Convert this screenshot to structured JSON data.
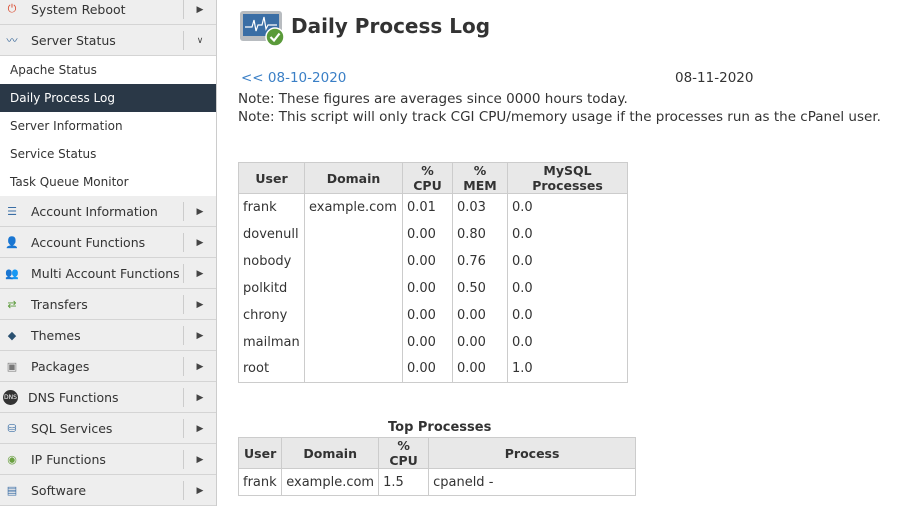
{
  "sidebar": {
    "top": [
      {
        "label": "System Reboot",
        "icon": "power-icon",
        "expanded": false
      },
      {
        "label": "Server Status",
        "icon": "monitor-icon",
        "expanded": true
      }
    ],
    "sub": [
      {
        "label": "Apache Status"
      },
      {
        "label": "Daily Process Log",
        "active": true
      },
      {
        "label": "Server Information"
      },
      {
        "label": "Service Status"
      },
      {
        "label": "Task Queue Monitor"
      }
    ],
    "cats": [
      {
        "label": "Account Information",
        "icon": "list-icon"
      },
      {
        "label": "Account Functions",
        "icon": "user-icon"
      },
      {
        "label": "Multi Account Functions",
        "icon": "users-icon"
      },
      {
        "label": "Transfers",
        "icon": "transfer-icon"
      },
      {
        "label": "Themes",
        "icon": "theme-icon"
      },
      {
        "label": "Packages",
        "icon": "package-icon"
      },
      {
        "label": "DNS Functions",
        "icon": "dns-icon"
      },
      {
        "label": "SQL Services",
        "icon": "database-icon"
      },
      {
        "label": "IP Functions",
        "icon": "globe-icon"
      },
      {
        "label": "Software",
        "icon": "software-icon"
      }
    ]
  },
  "page": {
    "title": "Daily Process Log",
    "prev_link": "<< 08-10-2020",
    "current_date": "08-11-2020",
    "note1": "Note: These figures are averages since 0000 hours today.",
    "note2": "Note: This script will only track CGI CPU/memory usage if the processes run as the cPanel user."
  },
  "usage_table": {
    "headers": [
      "User",
      "Domain",
      "% CPU",
      "% MEM",
      "MySQL Processes"
    ],
    "rows": [
      [
        "frank",
        "example.com",
        "0.01",
        "0.03",
        "0.0"
      ],
      [
        "dovenull",
        "",
        "0.00",
        "0.80",
        "0.0"
      ],
      [
        "nobody",
        "",
        "0.00",
        "0.76",
        "0.0"
      ],
      [
        "polkitd",
        "",
        "0.00",
        "0.50",
        "0.0"
      ],
      [
        "chrony",
        "",
        "0.00",
        "0.00",
        "0.0"
      ],
      [
        "mailman",
        "",
        "0.00",
        "0.00",
        "0.0"
      ],
      [
        "root",
        "",
        "0.00",
        "0.00",
        "1.0"
      ]
    ]
  },
  "top_table": {
    "title": "Top Processes",
    "headers": [
      "User",
      "Domain",
      "% CPU",
      "Process"
    ],
    "rows": [
      [
        "frank",
        "example.com",
        "1.5",
        "cpaneld -"
      ]
    ]
  }
}
